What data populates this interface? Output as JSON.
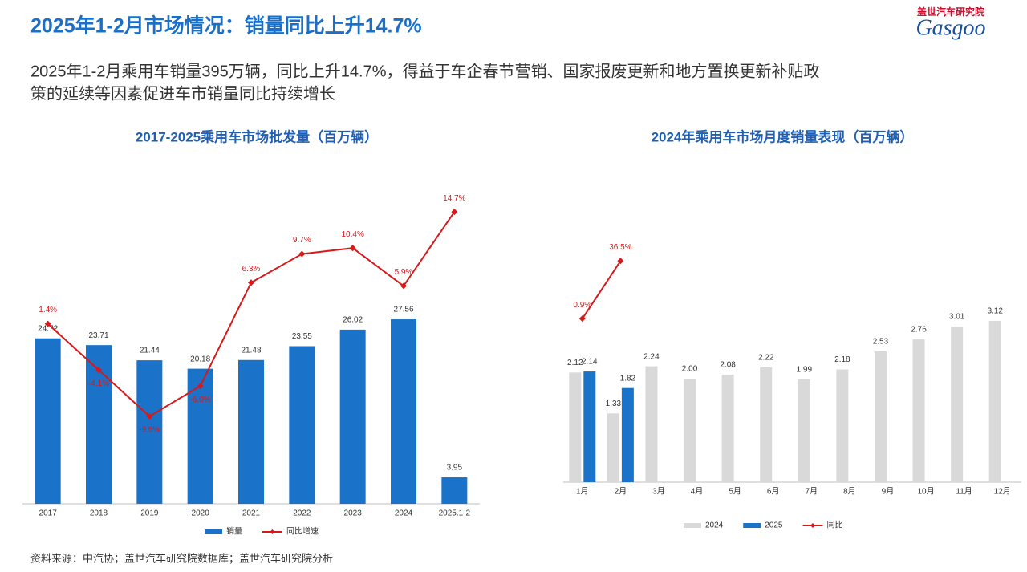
{
  "title": "2025年1-2月市场情况：销量同比上升14.7%",
  "subtitle": [
    "2025年1-2月乘用车销量395万辆，同比上升14.7%，得益于车企春节营销、国家报废更新和地方置换更新补贴政",
    "策的延续等因素促进车市销量同比持续增长"
  ],
  "logo": {
    "cn": "盖世汽车研究院",
    "en": "Gasgoo"
  },
  "source": "资料来源：中汽协；盖世汽车研究院数据库；盖世汽车研究院分析",
  "chart_data": [
    {
      "type": "combo",
      "title": "2017-2025乘用车市场批发量（百万辆）",
      "categories": [
        "2017",
        "2018",
        "2019",
        "2020",
        "2021",
        "2022",
        "2023",
        "2024",
        "2025.1-2"
      ],
      "ylim": [
        0,
        46.5
      ],
      "y2lim": [
        -20,
        17
      ],
      "series": [
        {
          "name": "销量",
          "color": "#1a73c8",
          "values": [
            24.72,
            23.71,
            21.44,
            20.18,
            21.48,
            23.55,
            26.02,
            27.56,
            3.95
          ]
        },
        {
          "name": "同比增速",
          "color": "#d7191c",
          "axis": "y2",
          "values": [
            1.4,
            -4.1,
            -9.6,
            -6.0,
            6.3,
            9.7,
            10.4,
            5.9,
            14.7
          ],
          "value_labels": [
            "1.4%",
            "-4.1%",
            "-9.6%",
            "-6.0%",
            "6.3%",
            "9.7%",
            "10.4%",
            "5.9%",
            "14.7%"
          ]
        }
      ]
    },
    {
      "type": "combo",
      "title": "2024年乘用车市场月度销量表现（百万辆）",
      "categories": [
        "1月",
        "2月",
        "3月",
        "4月",
        "5月",
        "6月",
        "7月",
        "8月",
        "9月",
        "10月",
        "11月",
        "12月"
      ],
      "ylim": [
        0,
        4.67
      ],
      "y2lim": [
        -100,
        49
      ],
      "series": [
        {
          "name": "2024",
          "color": "#d9d9d9",
          "values": [
            2.12,
            1.33,
            2.24,
            2.0,
            2.08,
            2.22,
            1.99,
            2.18,
            2.53,
            2.76,
            3.01,
            3.12
          ],
          "value_labels": [
            "2.12",
            "1.33",
            "2.24",
            "2.00",
            "2.08",
            "2.22",
            "1.99",
            "2.18",
            "2.53",
            "2.76",
            "3.01",
            "3.12"
          ]
        },
        {
          "name": "2025",
          "color": "#1a73c8",
          "values": [
            2.14,
            1.82,
            null,
            null,
            null,
            null,
            null,
            null,
            null,
            null,
            null,
            null
          ]
        },
        {
          "name": "同比",
          "color": "#d7191c",
          "axis": "y2",
          "values": [
            0.9,
            36.5,
            null,
            null,
            null,
            null,
            null,
            null,
            null,
            null,
            null,
            null
          ],
          "value_labels": [
            "0.9%",
            "36.5%",
            null,
            null,
            null,
            null,
            null,
            null,
            null,
            null,
            null,
            null
          ]
        }
      ]
    }
  ]
}
